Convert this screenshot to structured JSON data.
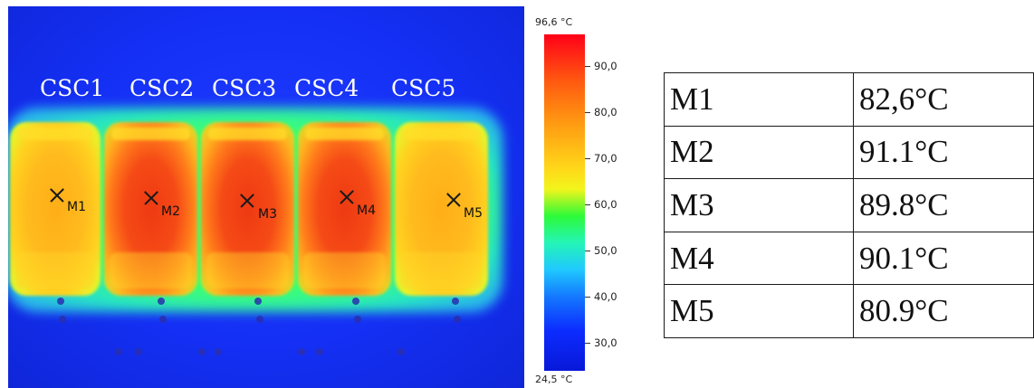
{
  "thermal_image": {
    "modules": [
      {
        "label": "CSC1",
        "marker": "M1",
        "heat": "cool"
      },
      {
        "label": "CSC2",
        "marker": "M2",
        "heat": "hot"
      },
      {
        "label": "CSC3",
        "marker": "M3",
        "heat": "hot"
      },
      {
        "label": "CSC4",
        "marker": "M4",
        "heat": "hot"
      },
      {
        "label": "CSC5",
        "marker": "M5",
        "heat": "cool"
      }
    ],
    "colors": {
      "background": "#1530f5",
      "hot": "#f54a16",
      "cool": "#ffbb1e",
      "halo": "#3dff6e"
    }
  },
  "color_scale": {
    "max_label": "96,6 °C",
    "min_label": "24,5 °C",
    "ticks": [
      "90,0",
      "80,0",
      "70,0",
      "60,0",
      "50,0",
      "40,0",
      "30,0"
    ]
  },
  "table": {
    "rows": [
      {
        "point": "M1",
        "temp": "82,6°C"
      },
      {
        "point": "M2",
        "temp": "91.1°C"
      },
      {
        "point": "M3",
        "temp": "89.8°C"
      },
      {
        "point": "M4",
        "temp": "90.1°C"
      },
      {
        "point": "M5",
        "temp": "80.9°C"
      }
    ]
  }
}
